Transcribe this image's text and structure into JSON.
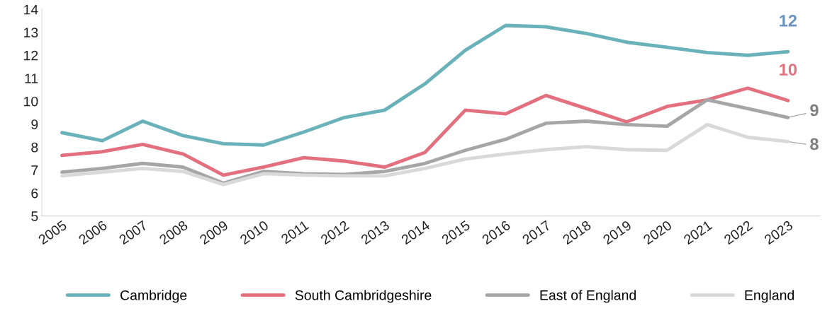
{
  "chart_data": {
    "type": "line",
    "categories": [
      "2005",
      "2006",
      "2007",
      "2008",
      "2009",
      "2010",
      "2011",
      "2012",
      "2013",
      "2014",
      "2015",
      "2016",
      "2017",
      "2018",
      "2019",
      "2020",
      "2021",
      "2022",
      "2023"
    ],
    "series": [
      {
        "name": "Cambridge",
        "color": "#6ab2ba",
        "values": [
          8.63,
          8.28,
          9.13,
          8.5,
          8.15,
          8.09,
          8.66,
          9.29,
          9.61,
          10.76,
          12.22,
          13.3,
          13.24,
          12.95,
          12.57,
          12.35,
          12.12,
          12.0,
          12.16
        ]
      },
      {
        "name": "South Cambridgeshire",
        "color": "#e2707e",
        "values": [
          7.64,
          7.8,
          8.12,
          7.7,
          6.78,
          7.13,
          7.54,
          7.39,
          7.13,
          7.77,
          9.61,
          9.45,
          10.25,
          9.68,
          9.1,
          9.77,
          10.06,
          10.57,
          10.03
        ]
      },
      {
        "name": "East of England",
        "color": "#a6a6a6",
        "values": [
          6.91,
          7.07,
          7.29,
          7.13,
          6.43,
          6.94,
          6.84,
          6.81,
          6.94,
          7.29,
          7.86,
          8.34,
          9.04,
          9.13,
          8.98,
          8.91,
          10.06,
          9.68,
          9.29
        ]
      },
      {
        "name": "England",
        "color": "#d9d9d9",
        "values": [
          6.75,
          6.91,
          7.07,
          6.94,
          6.37,
          6.84,
          6.78,
          6.75,
          6.75,
          7.07,
          7.48,
          7.7,
          7.89,
          8.02,
          7.89,
          7.86,
          8.98,
          8.43,
          8.24
        ]
      }
    ],
    "annotations": [
      {
        "text": "12",
        "x": "2023",
        "y": 12.16
      },
      {
        "text": "10",
        "x": "2023",
        "y": 10.03
      },
      {
        "text": "9",
        "x": "2023",
        "y": 9.29
      },
      {
        "text": "8",
        "x": "2023",
        "y": 8.24
      }
    ],
    "ylim": [
      5,
      14
    ],
    "yticks": [
      5,
      6,
      7,
      8,
      9,
      10,
      11,
      12,
      13,
      14
    ],
    "grid": false,
    "legend": "bottom",
    "marker": "none",
    "line_style": "solid"
  }
}
